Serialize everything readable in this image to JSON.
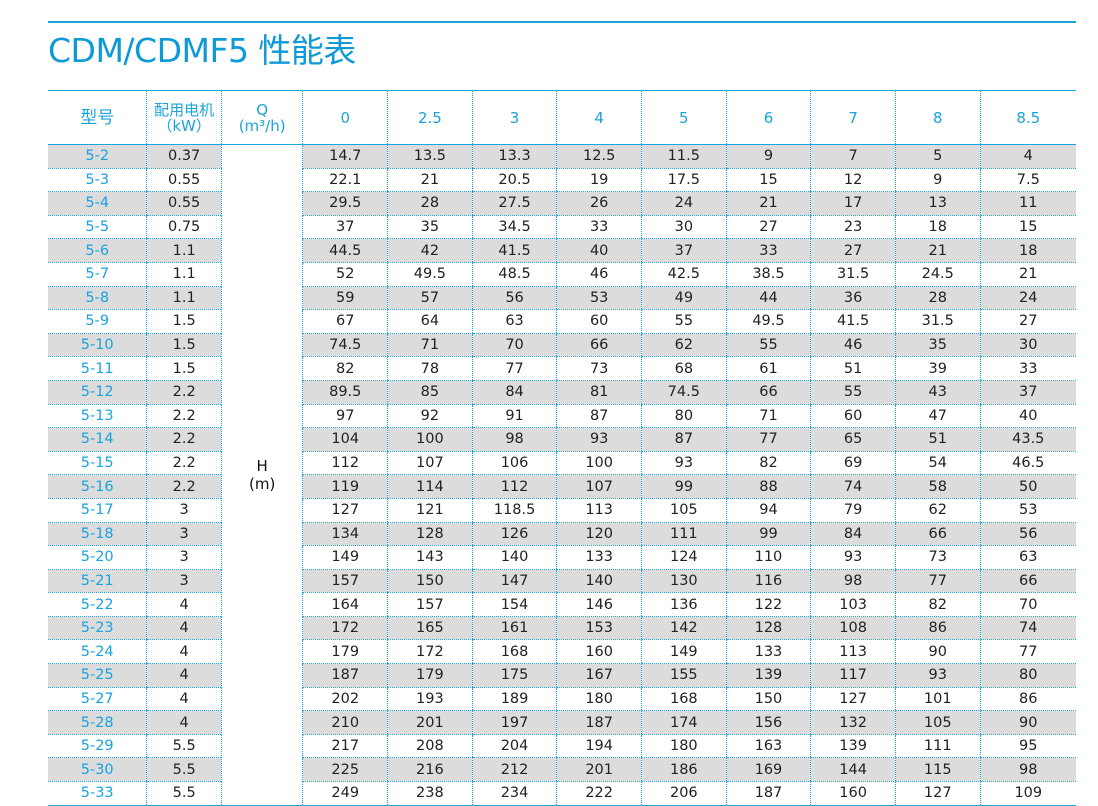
{
  "title": "CDM/CDMF5 性能表",
  "header": {
    "model_label": "型号",
    "motor_label_line1": "配用电机",
    "motor_label_line2": "（kW）",
    "q_label_line1": "Q",
    "q_label_line2": "(m³/h)",
    "flows": [
      "0",
      "2.5",
      "3",
      "4",
      "5",
      "6",
      "7",
      "8",
      "8.5"
    ]
  },
  "head_label": {
    "line1": "H",
    "line2": "(m)"
  },
  "accent_color": "#1ba6de",
  "stripe_color": "#dcdcdd",
  "rows": [
    {
      "model": "5-2",
      "power": "0.37",
      "heads": [
        "14.7",
        "13.5",
        "13.3",
        "12.5",
        "11.5",
        "9",
        "7",
        "5",
        "4"
      ]
    },
    {
      "model": "5-3",
      "power": "0.55",
      "heads": [
        "22.1",
        "21",
        "20.5",
        "19",
        "17.5",
        "15",
        "12",
        "9",
        "7.5"
      ]
    },
    {
      "model": "5-4",
      "power": "0.55",
      "heads": [
        "29.5",
        "28",
        "27.5",
        "26",
        "24",
        "21",
        "17",
        "13",
        "11"
      ]
    },
    {
      "model": "5-5",
      "power": "0.75",
      "heads": [
        "37",
        "35",
        "34.5",
        "33",
        "30",
        "27",
        "23",
        "18",
        "15"
      ]
    },
    {
      "model": "5-6",
      "power": "1.1",
      "heads": [
        "44.5",
        "42",
        "41.5",
        "40",
        "37",
        "33",
        "27",
        "21",
        "18"
      ]
    },
    {
      "model": "5-7",
      "power": "1.1",
      "heads": [
        "52",
        "49.5",
        "48.5",
        "46",
        "42.5",
        "38.5",
        "31.5",
        "24.5",
        "21"
      ]
    },
    {
      "model": "5-8",
      "power": "1.1",
      "heads": [
        "59",
        "57",
        "56",
        "53",
        "49",
        "44",
        "36",
        "28",
        "24"
      ]
    },
    {
      "model": "5-9",
      "power": "1.5",
      "heads": [
        "67",
        "64",
        "63",
        "60",
        "55",
        "49.5",
        "41.5",
        "31.5",
        "27"
      ]
    },
    {
      "model": "5-10",
      "power": "1.5",
      "heads": [
        "74.5",
        "71",
        "70",
        "66",
        "62",
        "55",
        "46",
        "35",
        "30"
      ]
    },
    {
      "model": "5-11",
      "power": "1.5",
      "heads": [
        "82",
        "78",
        "77",
        "73",
        "68",
        "61",
        "51",
        "39",
        "33"
      ]
    },
    {
      "model": "5-12",
      "power": "2.2",
      "heads": [
        "89.5",
        "85",
        "84",
        "81",
        "74.5",
        "66",
        "55",
        "43",
        "37"
      ]
    },
    {
      "model": "5-13",
      "power": "2.2",
      "heads": [
        "97",
        "92",
        "91",
        "87",
        "80",
        "71",
        "60",
        "47",
        "40"
      ]
    },
    {
      "model": "5-14",
      "power": "2.2",
      "heads": [
        "104",
        "100",
        "98",
        "93",
        "87",
        "77",
        "65",
        "51",
        "43.5"
      ]
    },
    {
      "model": "5-15",
      "power": "2.2",
      "heads": [
        "112",
        "107",
        "106",
        "100",
        "93",
        "82",
        "69",
        "54",
        "46.5"
      ]
    },
    {
      "model": "5-16",
      "power": "2.2",
      "heads": [
        "119",
        "114",
        "112",
        "107",
        "99",
        "88",
        "74",
        "58",
        "50"
      ]
    },
    {
      "model": "5-17",
      "power": "3",
      "heads": [
        "127",
        "121",
        "118.5",
        "113",
        "105",
        "94",
        "79",
        "62",
        "53"
      ]
    },
    {
      "model": "5-18",
      "power": "3",
      "heads": [
        "134",
        "128",
        "126",
        "120",
        "111",
        "99",
        "84",
        "66",
        "56"
      ]
    },
    {
      "model": "5-20",
      "power": "3",
      "heads": [
        "149",
        "143",
        "140",
        "133",
        "124",
        "110",
        "93",
        "73",
        "63"
      ]
    },
    {
      "model": "5-21",
      "power": "3",
      "heads": [
        "157",
        "150",
        "147",
        "140",
        "130",
        "116",
        "98",
        "77",
        "66"
      ]
    },
    {
      "model": "5-22",
      "power": "4",
      "heads": [
        "164",
        "157",
        "154",
        "146",
        "136",
        "122",
        "103",
        "82",
        "70"
      ]
    },
    {
      "model": "5-23",
      "power": "4",
      "heads": [
        "172",
        "165",
        "161",
        "153",
        "142",
        "128",
        "108",
        "86",
        "74"
      ]
    },
    {
      "model": "5-24",
      "power": "4",
      "heads": [
        "179",
        "172",
        "168",
        "160",
        "149",
        "133",
        "113",
        "90",
        "77"
      ]
    },
    {
      "model": "5-25",
      "power": "4",
      "heads": [
        "187",
        "179",
        "175",
        "167",
        "155",
        "139",
        "117",
        "93",
        "80"
      ]
    },
    {
      "model": "5-27",
      "power": "4",
      "heads": [
        "202",
        "193",
        "189",
        "180",
        "168",
        "150",
        "127",
        "101",
        "86"
      ]
    },
    {
      "model": "5-28",
      "power": "4",
      "heads": [
        "210",
        "201",
        "197",
        "187",
        "174",
        "156",
        "132",
        "105",
        "90"
      ]
    },
    {
      "model": "5-29",
      "power": "5.5",
      "heads": [
        "217",
        "208",
        "204",
        "194",
        "180",
        "163",
        "139",
        "111",
        "95"
      ]
    },
    {
      "model": "5-30",
      "power": "5.5",
      "heads": [
        "225",
        "216",
        "212",
        "201",
        "186",
        "169",
        "144",
        "115",
        "98"
      ]
    },
    {
      "model": "5-33",
      "power": "5.5",
      "heads": [
        "249",
        "238",
        "234",
        "222",
        "206",
        "187",
        "160",
        "127",
        "109"
      ]
    }
  ]
}
